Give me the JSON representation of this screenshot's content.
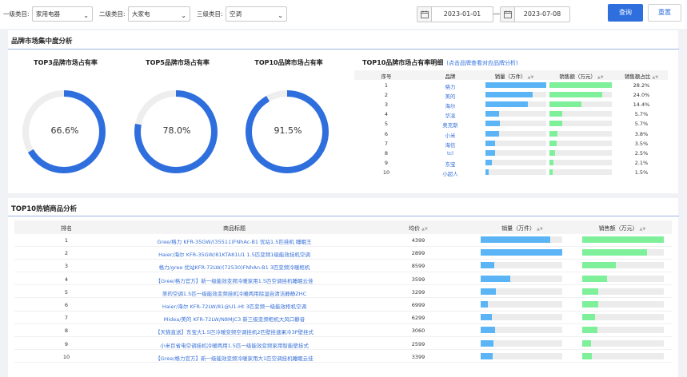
{
  "filters": {
    "level1_label": "一级类目:",
    "level1_value": "家用电器",
    "level2_label": "二级类目:",
    "level2_value": "大家电",
    "level3_label": "三级类目:",
    "level3_value": "空调",
    "start_date": "2023-01-01",
    "end_date": "2023-07-08",
    "query_label": "查询",
    "reset_label": "重置"
  },
  "brand_section": {
    "title": "品牌市场集中度分析",
    "donuts": [
      {
        "title": "TOP3品牌市场占有率",
        "value": 66.6,
        "label": "66.6%"
      },
      {
        "title": "TOP5品牌市场占有率",
        "value": 78.0,
        "label": "78.0%"
      },
      {
        "title": "TOP10品牌市场占有率",
        "value": 91.5,
        "label": "91.5%"
      }
    ],
    "table_title": "TOP10品牌市场占有率明细",
    "table_link": "(点击品牌查看对应品牌分析)",
    "headers": {
      "rank": "序号",
      "brand": "品牌",
      "sales": "销量（万件）",
      "revenue": "销售额（万元）",
      "share": "销售额占比"
    },
    "rows": [
      {
        "rank": "1",
        "brand": "格力",
        "sales": 1.0,
        "revenue": 1.0,
        "share": "28.2%"
      },
      {
        "rank": "2",
        "brand": "美的",
        "sales": 0.77,
        "revenue": 0.85,
        "share": "24.0%"
      },
      {
        "rank": "3",
        "brand": "海尔",
        "sales": 0.7,
        "revenue": 0.51,
        "share": "14.4%"
      },
      {
        "rank": "4",
        "brand": "华凌",
        "sales": 0.23,
        "revenue": 0.2,
        "share": "5.7%"
      },
      {
        "rank": "5",
        "brand": "奥克斯",
        "sales": 0.24,
        "revenue": 0.2,
        "share": "5.7%"
      },
      {
        "rank": "6",
        "brand": "小米",
        "sales": 0.22,
        "revenue": 0.13,
        "share": "3.8%"
      },
      {
        "rank": "7",
        "brand": "海信",
        "sales": 0.16,
        "revenue": 0.12,
        "share": "3.5%"
      },
      {
        "rank": "8",
        "brand": "tcl",
        "sales": 0.16,
        "revenue": 0.09,
        "share": "2.5%"
      },
      {
        "rank": "9",
        "brand": "东宝",
        "sales": 0.11,
        "revenue": 0.07,
        "share": "2.1%"
      },
      {
        "rank": "10",
        "brand": "小超人",
        "sales": 0.05,
        "revenue": 0.05,
        "share": "1.5%"
      }
    ]
  },
  "product_section": {
    "title": "TOP10热销商品分析",
    "headers": {
      "rank": "排名",
      "name": "商品标题",
      "price": "均价",
      "sales": "销量（万件）",
      "revenue": "销售额（万元）"
    },
    "rows": [
      {
        "rank": "1",
        "name": "Gree/格力 KFR-35GW/(35511)FNhAc-B1 优站1.5匹挂机 睡眠王",
        "price": "4399",
        "sales": 0.85,
        "revenue": 1.0
      },
      {
        "rank": "2",
        "name": "Haier/海尔 KFR-35GW/81KTA81U1 1.5匹变频1级能效挂机空调",
        "price": "2899",
        "sales": 1.0,
        "revenue": 0.79
      },
      {
        "rank": "3",
        "name": "格力/gree 优站KFR-72LW/(72530)FNhAn-B1 3匹变频冷暖柜机",
        "price": "8599",
        "sales": 0.17,
        "revenue": 0.41
      },
      {
        "rank": "4",
        "name": "【Gree/格力官方】新一级能效变频冷暖家用1.5匹空调挂机睡眠云佳",
        "price": "3599",
        "sales": 0.36,
        "revenue": 0.3
      },
      {
        "rank": "5",
        "name": "美的空调1.5匹一级能效变频挂机冷暖两用除湿自清洁静静ZHC",
        "price": "3299",
        "sales": 0.19,
        "revenue": 0.2
      },
      {
        "rank": "6",
        "name": "Haier/海尔 KFR-72LW/81@U1-Ht 3匹变频一级能效柜机空调",
        "price": "6999",
        "sales": 0.09,
        "revenue": 0.2
      },
      {
        "rank": "7",
        "name": "Midea/美的 KFR-72LW/N8MJC3 新三级变频柜机大风口静音",
        "price": "6299",
        "sales": 0.14,
        "revenue": 0.16
      },
      {
        "rank": "8",
        "name": "【天猫直送】东宝大1.5匹冷暖变频空调挂机2匹壁挂速果冷3P壁挂式",
        "price": "3060",
        "sales": 0.18,
        "revenue": 0.19
      },
      {
        "rank": "9",
        "name": "小米巨省电空调挂机冷暖两用1.5匹一级能效变频家用智能壁挂式",
        "price": "2599",
        "sales": 0.16,
        "revenue": 0.11
      },
      {
        "rank": "10",
        "name": "【Gree/格力官方】新一级能效变频冷暖家用大1匹空调挂机睡眠云佳",
        "price": "3399",
        "sales": 0.15,
        "revenue": 0.12
      }
    ]
  },
  "colors": {
    "accent": "#2f6fdd",
    "sales_bar": "#5ab4f5",
    "revenue_bar": "#7ef09a",
    "track": "#eeeeee"
  }
}
